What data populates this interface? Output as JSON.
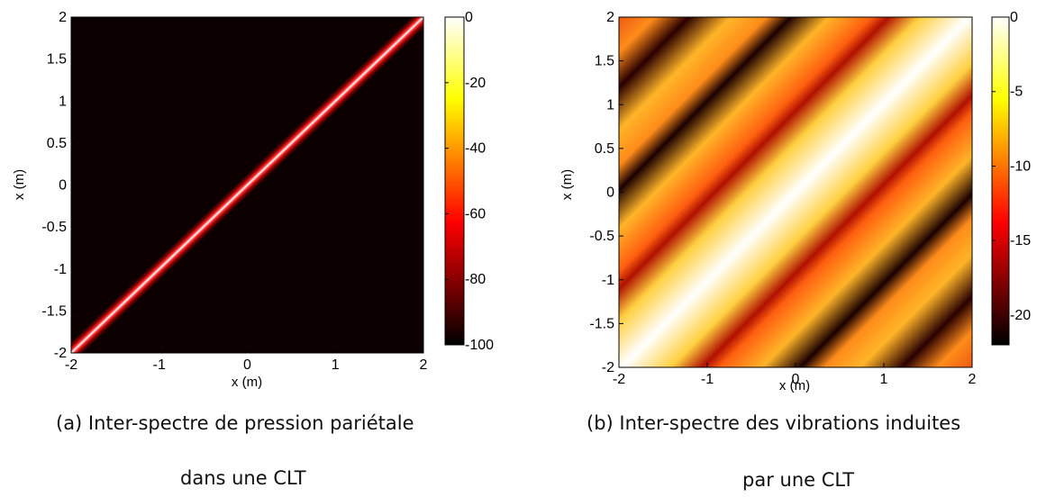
{
  "chart_data": [
    {
      "type": "heatmap",
      "panel": "a",
      "caption_line1": "(a)  Inter-spectre de pression pariétale",
      "caption_line2": "dans une CLT",
      "xlabel": "x (m)",
      "ylabel": "x (m)",
      "xlim": [
        -2,
        2
      ],
      "ylim": [
        -2,
        2
      ],
      "x_ticks": [
        "-2",
        "-1",
        "0",
        "1",
        "2"
      ],
      "y_ticks": [
        "2",
        "1.5",
        "1",
        "0.5",
        "0",
        "-0.5",
        "-1",
        "-1.5",
        "-2"
      ],
      "colorbar": {
        "range": [
          -100,
          0
        ],
        "ticks": [
          "0",
          "-20",
          "-40",
          "-60",
          "-80",
          "-100"
        ]
      },
      "colormap": "hot",
      "pattern": "narrow bright band along the diagonal x = x', rest at minimum level (-100)",
      "band_halfwidth_m": 0.06
    },
    {
      "type": "heatmap",
      "panel": "b",
      "caption_line1": "(b)  Inter-spectre des vibrations induites",
      "caption_line2": "par une CLT",
      "xlabel": "x (m)",
      "ylabel": "x (m)",
      "xlim": [
        -2,
        2
      ],
      "ylim": [
        -2,
        2
      ],
      "x_ticks": [
        "-2",
        "-1",
        "0",
        "1",
        "2"
      ],
      "y_ticks": [
        "2",
        "1.5",
        "1",
        "0.5",
        "0",
        "-0.5",
        "-1",
        "-1.5",
        "-2"
      ],
      "colorbar": {
        "range": [
          -22,
          0
        ],
        "ticks": [
          "0",
          "-5",
          "-10",
          "-15",
          "-20"
        ]
      },
      "colormap": "hot",
      "pattern": "stripes parallel to the diagonal; maximum (0) along x = x', dark minima at |x - x'| ≈ 0.95, 2.05, 3.15",
      "stripe_minima_offsets_m": [
        0.95,
        2.05,
        3.15
      ]
    }
  ],
  "colors": {
    "background": "#ffffff",
    "axis": "#000000",
    "minimum": "#0d0000"
  }
}
